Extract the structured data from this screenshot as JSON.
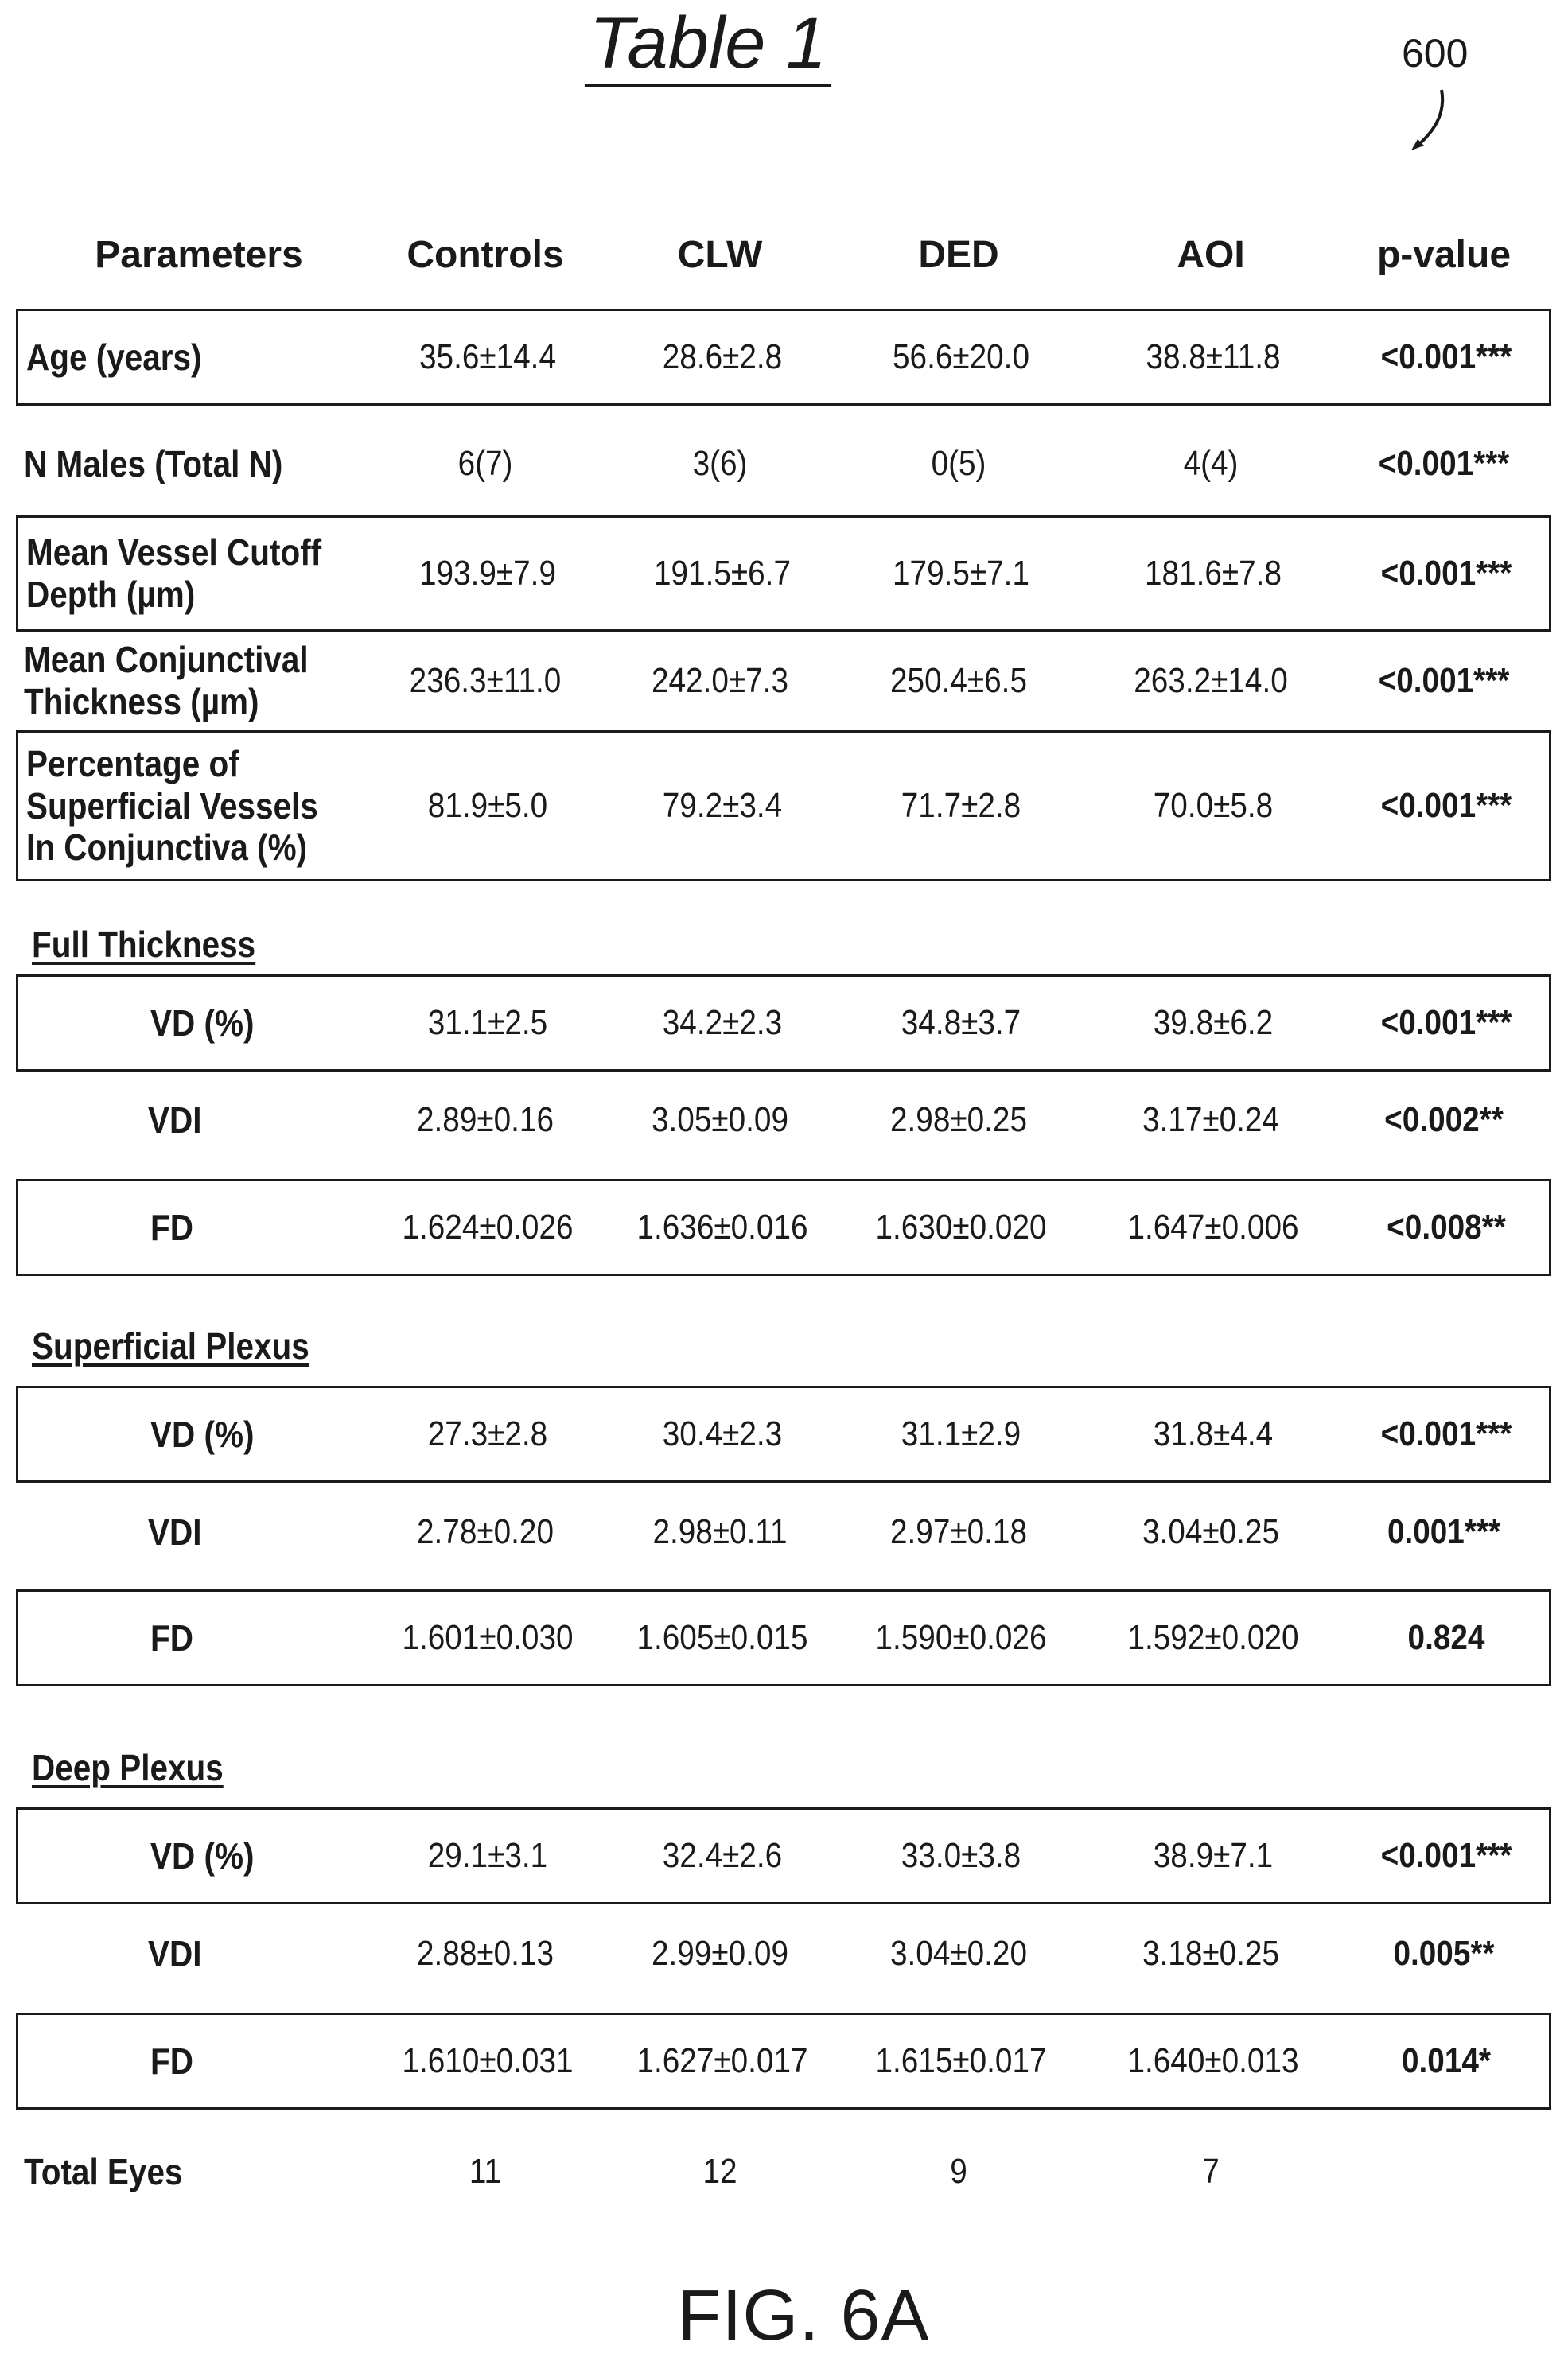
{
  "title": "Table 1",
  "reference_number": "600",
  "figure_label": "FIG. 6A",
  "headers": [
    "Parameters",
    "Controls",
    "CLW",
    "DED",
    "AOI",
    "p-value"
  ],
  "rows": [
    {
      "label": "Age (years)",
      "values": [
        "35.6±14.4",
        "28.6±2.8",
        "56.6±20.0",
        "38.8±11.8"
      ],
      "p": "<0.001***"
    },
    {
      "label": "N Males (Total N)",
      "values": [
        "6(7)",
        "3(6)",
        "0(5)",
        "4(4)"
      ],
      "p": "<0.001***"
    },
    {
      "label": "Mean Vessel Cutoff\nDepth (µm)",
      "values": [
        "193.9±7.9",
        "191.5±6.7",
        "179.5±7.1",
        "181.6±7.8"
      ],
      "p": "<0.001***"
    },
    {
      "label": "Mean Conjunctival\nThickness (µm)",
      "values": [
        "236.3±11.0",
        "242.0±7.3",
        "250.4±6.5",
        "263.2±14.0"
      ],
      "p": "<0.001***"
    },
    {
      "label": "Percentage of\nSuperficial Vessels\nIn Conjunctiva (%)",
      "values": [
        "81.9±5.0",
        "79.2±3.4",
        "71.7±2.8",
        "70.0±5.8"
      ],
      "p": "<0.001***"
    }
  ],
  "sections": [
    {
      "name": "Full Thickness",
      "rows": [
        {
          "label": "VD (%)",
          "values": [
            "31.1±2.5",
            "34.2±2.3",
            "34.8±3.7",
            "39.8±6.2"
          ],
          "p": "<0.001***"
        },
        {
          "label": "VDI",
          "values": [
            "2.89±0.16",
            "3.05±0.09",
            "2.98±0.25",
            "3.17±0.24"
          ],
          "p": "<0.002**"
        },
        {
          "label": "FD",
          "values": [
            "1.624±0.026",
            "1.636±0.016",
            "1.630±0.020",
            "1.647±0.006"
          ],
          "p": "<0.008**"
        }
      ]
    },
    {
      "name": "Superficial Plexus",
      "rows": [
        {
          "label": "VD (%)",
          "values": [
            "27.3±2.8",
            "30.4±2.3",
            "31.1±2.9",
            "31.8±4.4"
          ],
          "p": "<0.001***"
        },
        {
          "label": "VDI",
          "values": [
            "2.78±0.20",
            "2.98±0.11",
            "2.97±0.18",
            "3.04±0.25"
          ],
          "p": "0.001***"
        },
        {
          "label": "FD",
          "values": [
            "1.601±0.030",
            "1.605±0.015",
            "1.590±0.026",
            "1.592±0.020"
          ],
          "p": "0.824"
        }
      ]
    },
    {
      "name": "Deep Plexus",
      "rows": [
        {
          "label": "VD (%)",
          "values": [
            "29.1±3.1",
            "32.4±2.6",
            "33.0±3.8",
            "38.9±7.1"
          ],
          "p": "<0.001***"
        },
        {
          "label": "VDI",
          "values": [
            "2.88±0.13",
            "2.99±0.09",
            "3.04±0.20",
            "3.18±0.25"
          ],
          "p": "0.005**"
        },
        {
          "label": "FD",
          "values": [
            "1.610±0.031",
            "1.627±0.017",
            "1.615±0.017",
            "1.640±0.013"
          ],
          "p": "0.014*"
        }
      ]
    }
  ],
  "total_eyes": {
    "label": "Total Eyes",
    "values": [
      "11",
      "12",
      "9",
      "7"
    ]
  }
}
